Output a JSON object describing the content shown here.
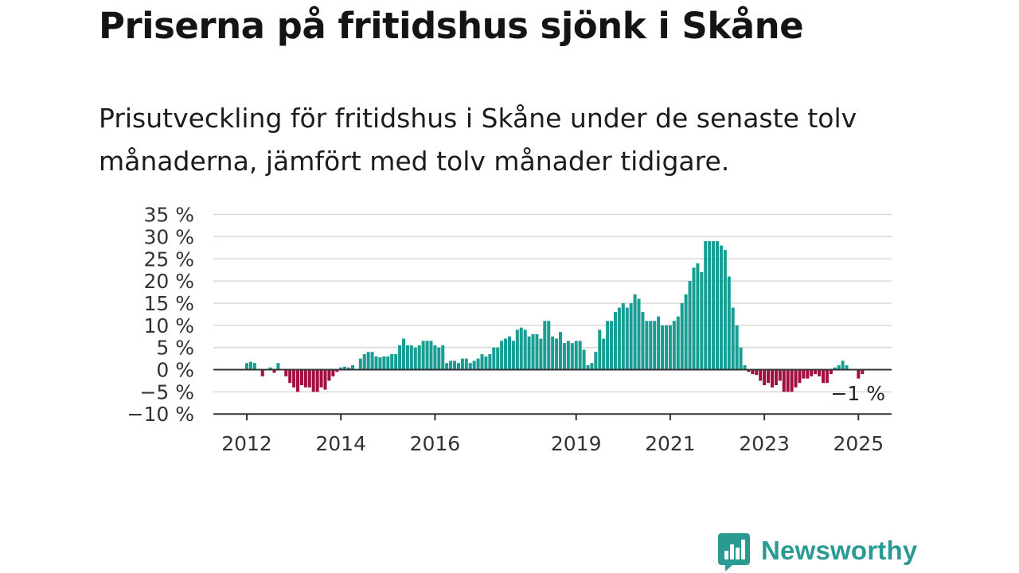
{
  "title": "Priserna på fritidshus sjönk i Skåne",
  "subtitle": "Prisutveckling för fritidshus i Skåne under de senaste tolv månaderna, jämfört med tolv månader tidigare.",
  "brand": {
    "name": "Newsworthy",
    "color": "#2a9a93"
  },
  "chart_data": {
    "type": "bar",
    "unit": "%",
    "ylim": [
      -10,
      35
    ],
    "yticks": [
      35,
      30,
      25,
      20,
      15,
      10,
      5,
      0,
      -5,
      -10
    ],
    "ytick_labels": [
      "35 %",
      "30 %",
      "25 %",
      "20 %",
      "15 %",
      "10 %",
      "5 %",
      "0 %",
      "−5 %",
      "−10 %"
    ],
    "xtick_labels": [
      {
        "label": "2012",
        "year": 2012.0
      },
      {
        "label": "2014",
        "year": 2014.0
      },
      {
        "label": "2016",
        "year": 2016.0
      },
      {
        "label": "2019",
        "year": 2019.0
      },
      {
        "label": "2021",
        "year": 2021.0
      },
      {
        "label": "2023",
        "year": 2023.0
      },
      {
        "label": "2025",
        "year": 2025.0
      }
    ],
    "grid": true,
    "colors": {
      "positive": "#1a9e94",
      "negative": "#a3103f"
    },
    "annotation": {
      "text": "−1 %",
      "value": -1
    },
    "series": [
      {
        "from": "2012-01",
        "values": [
          1.5,
          1.8,
          1.5,
          0,
          -1.5,
          0,
          0.5,
          -0.7,
          1.5,
          0,
          -1.5,
          -3,
          -4,
          -5,
          -3.5,
          -4,
          -4,
          -5,
          -5,
          -4,
          -4.5,
          -2.5,
          -1.5,
          -0.5,
          0.5,
          0.7,
          0.5,
          1,
          0,
          2.5,
          3.5,
          4,
          4,
          3,
          2.8,
          3,
          3,
          3.5,
          3.5,
          5.5,
          7,
          5.5,
          5.5,
          5,
          5.5,
          6.5,
          6.5,
          6.5,
          5.5,
          5,
          5.5,
          1.5,
          2,
          2,
          1.5,
          2.5,
          2.5,
          1.5,
          2,
          2.5,
          3.5,
          3,
          3.5,
          5,
          5,
          6.5,
          7,
          7.5,
          6.5,
          9,
          9.5,
          9,
          7.5,
          8,
          8,
          7,
          11,
          11,
          7.5,
          7,
          8.5,
          6,
          6.5,
          6,
          6.5,
          6.5,
          4.5,
          1,
          1.5,
          4,
          9,
          7,
          11,
          11,
          13,
          14,
          15,
          14,
          15,
          17,
          16,
          13,
          11,
          11,
          11,
          12,
          10,
          10,
          10,
          11,
          12,
          15,
          17,
          20,
          23,
          24,
          22,
          29,
          29,
          29,
          29,
          28,
          27,
          21,
          14,
          10,
          5,
          1,
          -0.5,
          -1,
          -1.2,
          -2.5,
          -3.5,
          -3,
          -4,
          -3.5,
          -2.5,
          -5,
          -5,
          -5,
          -4,
          -3,
          -2,
          -2,
          -1.5,
          -1,
          -1.5,
          -3,
          -3,
          -1,
          0.5,
          1,
          2,
          1,
          0,
          0,
          -2,
          -1
        ]
      }
    ]
  }
}
